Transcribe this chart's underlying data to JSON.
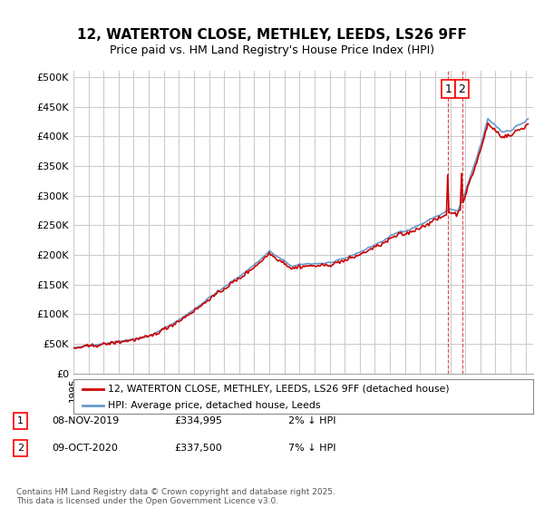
{
  "title": "12, WATERTON CLOSE, METHLEY, LEEDS, LS26 9FF",
  "subtitle": "Price paid vs. HM Land Registry's House Price Index (HPI)",
  "ylabel_ticks": [
    "£0",
    "£50K",
    "£100K",
    "£150K",
    "£200K",
    "£250K",
    "£300K",
    "£350K",
    "£400K",
    "£450K",
    "£500K"
  ],
  "ytick_vals": [
    0,
    50000,
    100000,
    150000,
    200000,
    250000,
    300000,
    350000,
    400000,
    450000,
    500000
  ],
  "legend_line1": "12, WATERTON CLOSE, METHLEY, LEEDS, LS26 9FF (detached house)",
  "legend_line2": "HPI: Average price, detached house, Leeds",
  "annotation1_label": "1",
  "annotation1_date": "08-NOV-2019",
  "annotation1_price": "£334,995",
  "annotation1_info": "2% ↓ HPI",
  "annotation1_year": 2019.86,
  "annotation2_label": "2",
  "annotation2_date": "09-OCT-2020",
  "annotation2_price": "£337,500",
  "annotation2_info": "7% ↓ HPI",
  "annotation2_year": 2020.78,
  "line1_color": "#cc0000",
  "line2_color": "#6699cc",
  "footer": "Contains HM Land Registry data © Crown copyright and database right 2025.\nThis data is licensed under the Open Government Licence v3.0.",
  "bg_color": "#ffffff",
  "grid_color": "#cccccc",
  "sale1_value": 334995,
  "sale2_value": 337500
}
